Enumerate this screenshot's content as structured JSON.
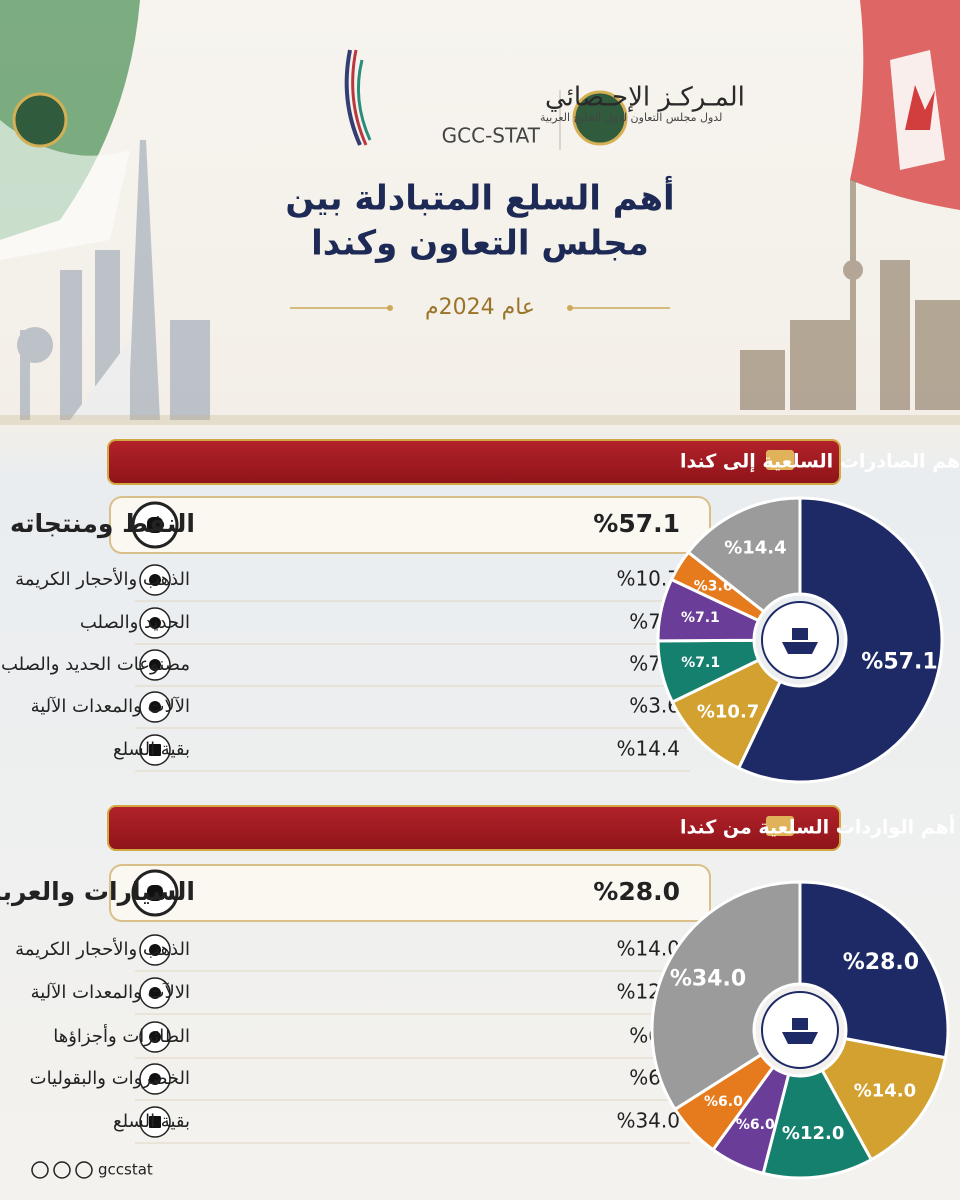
{
  "header": {
    "org_name": "المـركـز الإحـصائي",
    "org_sub": "لدول مجلس التعاون لدول الخليج العربية",
    "org_latin": "GCC-STAT",
    "title_lines": [
      "أهم السلع المتبادلة بين",
      "مجلس التعاون وكندا"
    ],
    "year": "عام 2024م"
  },
  "chart_data": [
    {
      "type": "donut",
      "title": "أهم الصادرات السلعية إلى كندا",
      "categories": [
        "النفط ومنتجاته",
        "الذهب والأحجار الكريمة",
        "الحديد والصلب",
        "مصنوعات الحديد والصلب",
        "الآلات والمعدات الآلية",
        "بقية السلع"
      ],
      "values": [
        57.1,
        10.7,
        7.1,
        7.1,
        3.6,
        14.4
      ],
      "value_labels": [
        "%57.1",
        "%10.7",
        "%7.1",
        "%7.1",
        "%3.6",
        "%14.4"
      ],
      "colors": [
        "#1d2a66",
        "#d2a12f",
        "#16806e",
        "#6a3d98",
        "#e57b1c",
        "#9b9b9b"
      ]
    },
    {
      "type": "donut",
      "title": "أهم الواردات السلعية من كندا",
      "categories": [
        "السيارات والعربات وأجزاؤها",
        "الذهب والأحجار الكريمة",
        "الالآت والمعدات الآلية",
        "الطائرات وأجزاؤها",
        "الخضروات والبقوليات",
        "بقية السلع"
      ],
      "values": [
        28.0,
        14.0,
        12.0,
        6.0,
        6.0,
        34.0
      ],
      "value_labels": [
        "%28.0",
        "%14.0",
        "%12.0",
        "%6.0",
        "%6.0",
        "%34.0"
      ],
      "colors": [
        "#1d2a66",
        "#d2a12f",
        "#16806e",
        "#6a3d98",
        "#e57b1c",
        "#9b9b9b"
      ]
    }
  ],
  "footer": {
    "handle": "gccstat"
  }
}
